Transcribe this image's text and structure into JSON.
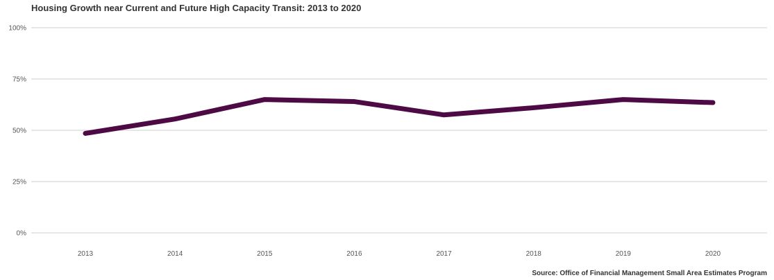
{
  "chart_data": {
    "type": "line",
    "title": "Housing Growth near Current and Future High Capacity Transit: 2013 to 2020",
    "source": "Source: Office of Financial Management Small Area Estimates Program",
    "xlabel": "",
    "ylabel": "",
    "categories": [
      "2013",
      "2014",
      "2015",
      "2016",
      "2017",
      "2018",
      "2019",
      "2020"
    ],
    "series": [
      {
        "values": [
          48.5,
          55.5,
          65,
          64,
          57.5,
          61,
          65,
          63.5
        ],
        "color": "#4d0a45"
      }
    ],
    "ylim": [
      0,
      100
    ],
    "y_ticks": [
      0,
      25,
      50,
      75,
      100
    ],
    "y_tick_labels": [
      "0%",
      "25%",
      "50%",
      "75%",
      "100%"
    ],
    "grid": true,
    "legend": "none"
  }
}
